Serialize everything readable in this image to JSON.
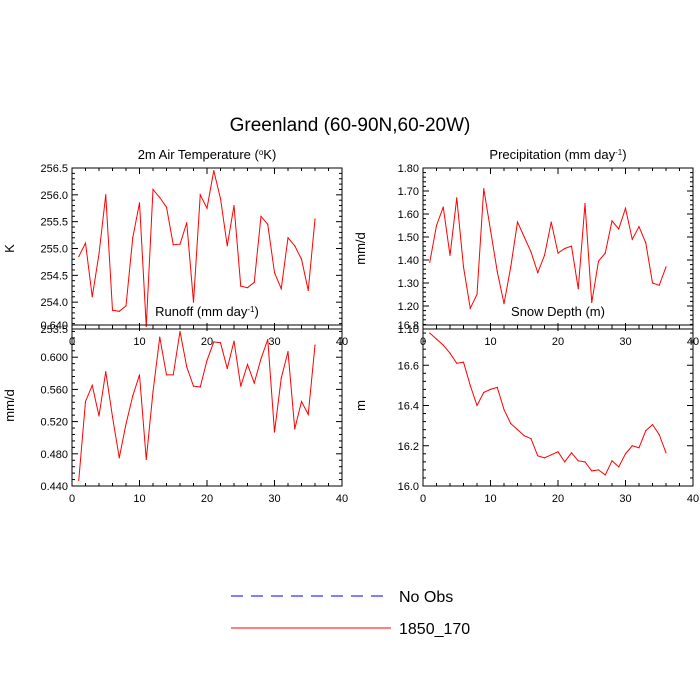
{
  "title": "Greenland (60-90N,60-20W)",
  "colors": {
    "model": "#ff0000",
    "obs": "#0000ff",
    "axis": "#000000"
  },
  "legend": {
    "placement": "bottom-center",
    "items": [
      {
        "label": "No Obs",
        "style": "dashed",
        "color": "#0000ff"
      },
      {
        "label": "1850_170",
        "style": "solid",
        "color": "#ff0000"
      }
    ]
  },
  "chart_data": [
    {
      "type": "line",
      "title": {
        "main": "2m Air Temperature (",
        "sup": "o",
        "end": "K)"
      },
      "ylabel": "K",
      "xlim": [
        0,
        40
      ],
      "ylim": [
        253.5,
        256.5
      ],
      "xticks": [
        "0",
        "10",
        "20",
        "30",
        "40"
      ],
      "yticks": [
        "253.5",
        "254.0",
        "254.5",
        "255.0",
        "255.5",
        "256.0",
        "256.5"
      ],
      "x": [
        1,
        2,
        3,
        4,
        5,
        6,
        7,
        8,
        9,
        10,
        11,
        12,
        13,
        14,
        15,
        16,
        17,
        18,
        19,
        20,
        21,
        22,
        23,
        24,
        25,
        26,
        27,
        28,
        29,
        30,
        31,
        32,
        33,
        34,
        35,
        36
      ],
      "series": [
        {
          "values": [
            254.85,
            255.1,
            254.1,
            254.9,
            256.0,
            253.85,
            253.83,
            253.93,
            255.2,
            255.85,
            253.55,
            256.1,
            255.95,
            255.77,
            255.07,
            255.08,
            255.48,
            254.0,
            256.0,
            255.75,
            256.45,
            255.93,
            255.05,
            255.8,
            254.3,
            254.27,
            254.37,
            255.6,
            255.45,
            254.55,
            254.25,
            255.2,
            255.05,
            254.8,
            254.22,
            255.55
          ]
        }
      ]
    },
    {
      "type": "line",
      "title": {
        "main": "Precipitation (mm day",
        "sup": "-1",
        "end": ")"
      },
      "ylabel": "mm/d",
      "xlim": [
        0,
        40
      ],
      "ylim": [
        1.1,
        1.8
      ],
      "xticks": [
        "0",
        "10",
        "20",
        "30",
        "40"
      ],
      "yticks": [
        "1.10",
        "1.20",
        "1.30",
        "1.40",
        "1.50",
        "1.60",
        "1.70",
        "1.80"
      ],
      "x": [
        1,
        2,
        3,
        4,
        5,
        6,
        7,
        8,
        9,
        10,
        11,
        12,
        13,
        14,
        15,
        16,
        17,
        18,
        19,
        20,
        21,
        22,
        23,
        24,
        25,
        26,
        27,
        28,
        29,
        30,
        31,
        32,
        33,
        34,
        35,
        36
      ],
      "series": [
        {
          "values": [
            1.39,
            1.55,
            1.63,
            1.42,
            1.67,
            1.37,
            1.19,
            1.25,
            1.71,
            1.53,
            1.35,
            1.21,
            1.37,
            1.565,
            1.5,
            1.435,
            1.345,
            1.42,
            1.565,
            1.43,
            1.45,
            1.46,
            1.275,
            1.645,
            1.215,
            1.395,
            1.43,
            1.57,
            1.535,
            1.625,
            1.49,
            1.545,
            1.475,
            1.3,
            1.29,
            1.37
          ]
        }
      ]
    },
    {
      "type": "line",
      "title": {
        "main": "Runoff (mm day",
        "sup": "-1",
        "end": ")"
      },
      "ylabel": "mm/d",
      "xlim": [
        0,
        40
      ],
      "ylim": [
        0.44,
        0.64
      ],
      "xticks": [
        "0",
        "10",
        "20",
        "30",
        "40"
      ],
      "yticks": [
        "0.440",
        "0.480",
        "0.520",
        "0.560",
        "0.600",
        "0.640"
      ],
      "x": [
        1,
        2,
        3,
        4,
        5,
        6,
        7,
        8,
        9,
        10,
        11,
        12,
        13,
        14,
        15,
        16,
        17,
        18,
        19,
        20,
        21,
        22,
        23,
        24,
        25,
        26,
        27,
        28,
        29,
        30,
        31,
        32,
        33,
        34,
        35,
        36
      ],
      "series": [
        {
          "values": [
            0.447,
            0.545,
            0.565,
            0.527,
            0.582,
            0.526,
            0.475,
            0.517,
            0.552,
            0.578,
            0.473,
            0.557,
            0.625,
            0.578,
            0.578,
            0.632,
            0.588,
            0.564,
            0.563,
            0.596,
            0.619,
            0.618,
            0.586,
            0.62,
            0.564,
            0.591,
            0.568,
            0.598,
            0.622,
            0.507,
            0.574,
            0.607,
            0.511,
            0.545,
            0.529,
            0.615
          ]
        }
      ]
    },
    {
      "type": "line",
      "title": {
        "main": "Snow Depth (m)",
        "sup": "",
        "end": ""
      },
      "ylabel": "m",
      "xlim": [
        0,
        40
      ],
      "ylim": [
        16.0,
        16.8
      ],
      "xticks": [
        "0",
        "10",
        "20",
        "30",
        "40"
      ],
      "yticks": [
        "16.0",
        "16.2",
        "16.4",
        "16.6",
        "16.8"
      ],
      "x": [
        1,
        2,
        3,
        4,
        5,
        6,
        7,
        8,
        9,
        10,
        11,
        12,
        13,
        14,
        15,
        16,
        17,
        18,
        19,
        20,
        21,
        22,
        23,
        24,
        25,
        26,
        27,
        28,
        29,
        30,
        31,
        32,
        33,
        34,
        35,
        36
      ],
      "series": [
        {
          "values": [
            16.76,
            16.73,
            16.7,
            16.66,
            16.61,
            16.615,
            16.5,
            16.4,
            16.465,
            16.48,
            16.49,
            16.38,
            16.31,
            16.28,
            16.25,
            16.235,
            16.15,
            16.14,
            16.155,
            16.17,
            16.12,
            16.165,
            16.125,
            16.12,
            16.075,
            16.08,
            16.055,
            16.125,
            16.095,
            16.16,
            16.2,
            16.19,
            16.275,
            16.305,
            16.255,
            16.165
          ]
        }
      ]
    }
  ]
}
